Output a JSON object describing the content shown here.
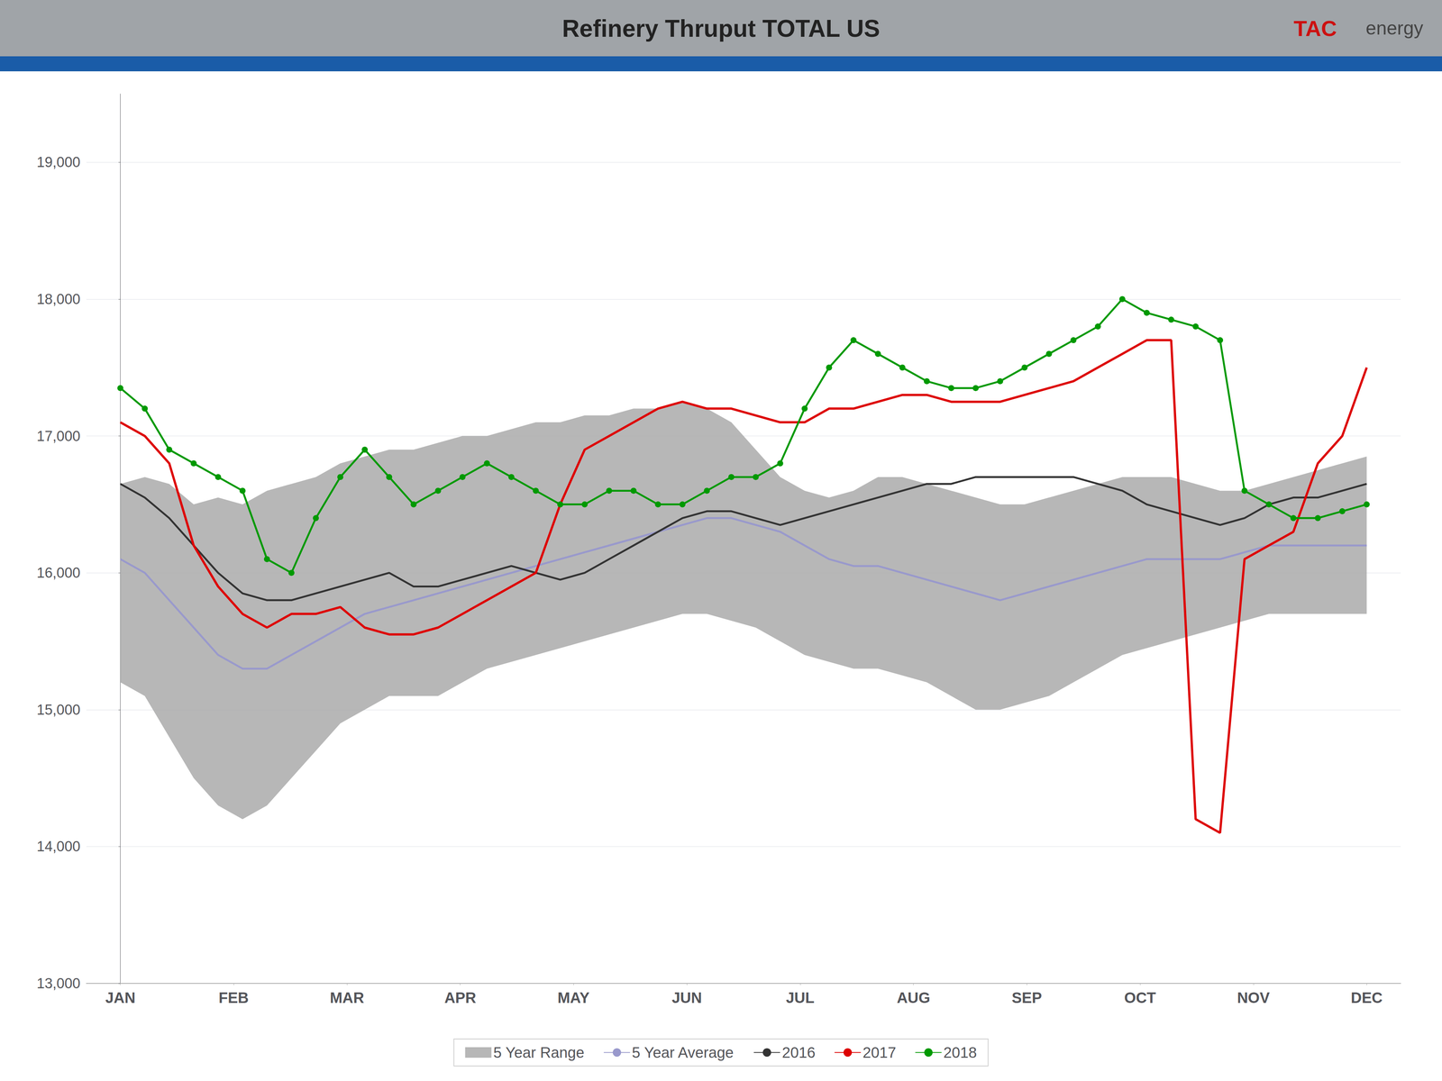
{
  "chart_data": {
    "type": "line",
    "title": "Refinery Thruput TOTAL US",
    "header_color": "#a0a4a8",
    "header_bar_color": "#1a5ca8",
    "annotations": [
      {
        "text": "TAC",
        "color": "#cc1111"
      },
      {
        "text": "energy",
        "color": "#444444"
      }
    ],
    "x": [
      0,
      0.2157,
      0.4314,
      0.6471,
      0.8627,
      1.0784,
      1.2941,
      1.5098,
      1.7255,
      1.9412,
      2.1569,
      2.3725,
      2.5882,
      2.8039,
      3.0196,
      3.2353,
      3.451,
      3.6667,
      3.8824,
      4.098,
      4.3137,
      4.5294,
      4.7451,
      4.9608,
      5.1765,
      5.3922,
      5.6078,
      5.8235,
      6.0392,
      6.2549,
      6.4706,
      6.6863,
      6.902,
      7.1176,
      7.3333,
      7.549,
      7.7647,
      7.9804,
      8.1961,
      8.4118,
      8.6275,
      8.8431,
      9.0588,
      9.2745,
      9.4902,
      9.7059,
      9.9216,
      10.1373,
      10.3529,
      10.5686,
      10.7843,
      11
    ],
    "xlim": [
      -0.3,
      11.3
    ],
    "xticks": [
      {
        "value": 0,
        "label": "JAN"
      },
      {
        "value": 1,
        "label": "FEB"
      },
      {
        "value": 2,
        "label": "MAR"
      },
      {
        "value": 3,
        "label": "APR"
      },
      {
        "value": 4,
        "label": "MAY"
      },
      {
        "value": 5,
        "label": "JUN"
      },
      {
        "value": 6,
        "label": "JUL"
      },
      {
        "value": 7,
        "label": "AUG"
      },
      {
        "value": 8,
        "label": "SEP"
      },
      {
        "value": 9,
        "label": "OCT"
      },
      {
        "value": 10,
        "label": "NOV"
      },
      {
        "value": 11,
        "label": "DEC"
      }
    ],
    "ylim": [
      13000,
      19500
    ],
    "yticks": [
      {
        "value": 13000,
        "label": "13,000"
      },
      {
        "value": 14000,
        "label": "14,000"
      },
      {
        "value": 15000,
        "label": "15,000"
      },
      {
        "value": 16000,
        "label": "16,000"
      },
      {
        "value": 17000,
        "label": "17,000"
      },
      {
        "value": 18000,
        "label": "18,000"
      },
      {
        "value": 19000,
        "label": "19,000"
      }
    ],
    "grid": true,
    "legend": "bottom",
    "series": [
      {
        "name": "5 Year Range",
        "type": "range",
        "color": "#aaaaaa",
        "upper": [
          16650,
          16700,
          16650,
          16500,
          16550,
          16500,
          16600,
          16650,
          16700,
          16800,
          16850,
          16900,
          16900,
          16950,
          17000,
          17000,
          17050,
          17100,
          17100,
          17150,
          17150,
          17200,
          17200,
          17250,
          17200,
          17100,
          16900,
          16700,
          16600,
          16550,
          16600,
          16700,
          16700,
          16650,
          16600,
          16550,
          16500,
          16500,
          16550,
          16600,
          16650,
          16700,
          16700,
          16700,
          16650,
          16600,
          16600,
          16650,
          16700,
          16750,
          16800,
          16850
        ],
        "lower": [
          15200,
          15100,
          14800,
          14500,
          14300,
          14200,
          14300,
          14500,
          14700,
          14900,
          15000,
          15100,
          15100,
          15100,
          15200,
          15300,
          15350,
          15400,
          15450,
          15500,
          15550,
          15600,
          15650,
          15700,
          15700,
          15650,
          15600,
          15500,
          15400,
          15350,
          15300,
          15300,
          15250,
          15200,
          15100,
          15000,
          15000,
          15050,
          15100,
          15200,
          15300,
          15400,
          15450,
          15500,
          15550,
          15600,
          15650,
          15700,
          15700,
          15700,
          15700,
          15700
        ]
      },
      {
        "name": "5 Year Average",
        "type": "line",
        "color": "#9999cc",
        "values": [
          16100,
          16000,
          15800,
          15600,
          15400,
          15300,
          15300,
          15400,
          15500,
          15600,
          15700,
          15750,
          15800,
          15850,
          15900,
          15950,
          16000,
          16050,
          16100,
          16150,
          16200,
          16250,
          16300,
          16350,
          16400,
          16400,
          16350,
          16300,
          16200,
          16100,
          16050,
          16050,
          16000,
          15950,
          15900,
          15850,
          15800,
          15850,
          15900,
          15950,
          16000,
          16050,
          16100,
          16100,
          16100,
          16100,
          16150,
          16200,
          16200,
          16200,
          16200,
          16200
        ]
      },
      {
        "name": "2016",
        "type": "line",
        "color": "#333333",
        "values": [
          16650,
          16550,
          16400,
          16200,
          16000,
          15850,
          15800,
          15800,
          15850,
          15900,
          15950,
          16000,
          15900,
          15900,
          15950,
          16000,
          16050,
          16000,
          15950,
          16000,
          16100,
          16200,
          16300,
          16400,
          16450,
          16450,
          16400,
          16350,
          16400,
          16450,
          16500,
          16550,
          16600,
          16650,
          16650,
          16700,
          16700,
          16700,
          16700,
          16700,
          16650,
          16600,
          16500,
          16450,
          16400,
          16350,
          16400,
          16500,
          16550,
          16550,
          16600,
          16650
        ]
      },
      {
        "name": "2017",
        "type": "line",
        "color": "#dd0000",
        "values": [
          17100,
          17000,
          16800,
          16200,
          15900,
          15700,
          15600,
          15700,
          15700,
          15750,
          15600,
          15550,
          15550,
          15600,
          15700,
          15800,
          15900,
          16000,
          16500,
          16900,
          17000,
          17100,
          17200,
          17250,
          17200,
          17200,
          17150,
          17100,
          17100,
          17200,
          17200,
          17250,
          17300,
          17300,
          17250,
          17250,
          17250,
          17300,
          17350,
          17400,
          17500,
          17600,
          17700,
          17700,
          14200,
          14100,
          16100,
          16200,
          16300,
          16800,
          17000,
          17500
        ]
      },
      {
        "name": "2018",
        "type": "line",
        "color": "#009900",
        "marker": "circle",
        "values": [
          17350,
          17200,
          16900,
          16800,
          16700,
          16600,
          16100,
          16000,
          16400,
          16700,
          16900,
          16700,
          16500,
          16600,
          16700,
          16800,
          16700,
          16600,
          16500,
          16500,
          16600,
          16600,
          16500,
          16500,
          16600,
          16700,
          16700,
          16800,
          17200,
          17500,
          17700,
          17600,
          17500,
          17400,
          17350,
          17350,
          17400,
          17500,
          17600,
          17700,
          17800,
          18000,
          17900,
          17850,
          17800,
          17700,
          16600,
          16500,
          16400,
          16400,
          16450,
          16500
        ]
      }
    ]
  }
}
